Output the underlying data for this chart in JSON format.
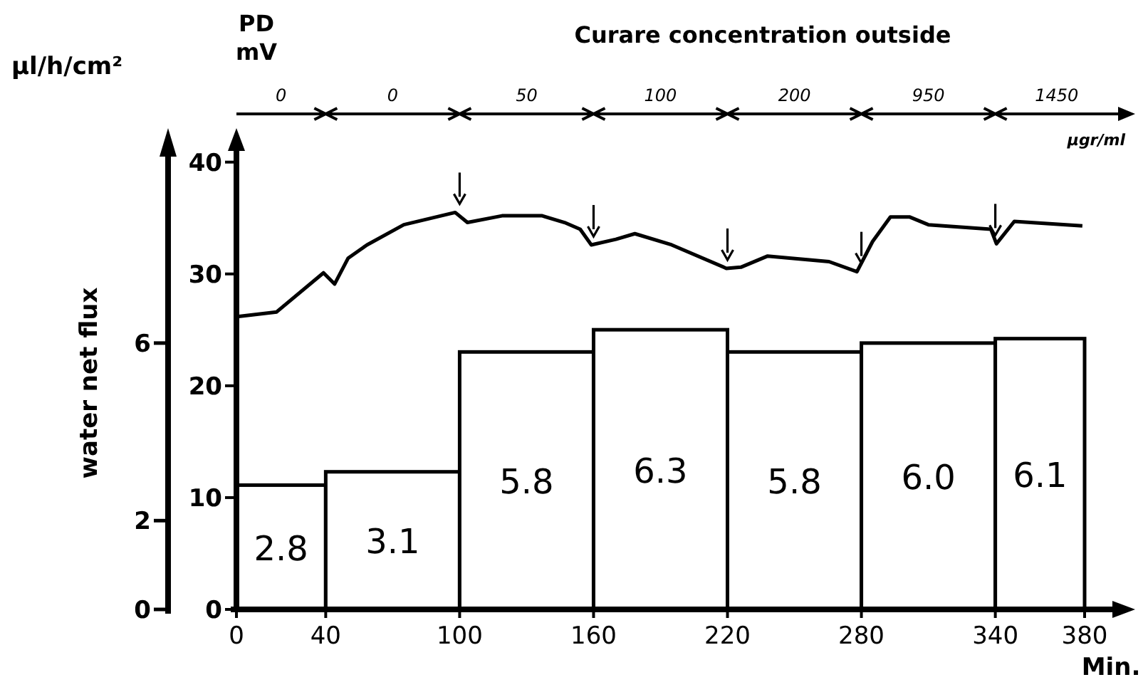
{
  "chart_data": {
    "type": "histogram",
    "title": "Curare concentration outside",
    "ylabel": "water net flux",
    "y2label": "PD mV",
    "xlabel": "Min.",
    "bins": [
      0,
      40,
      100,
      160,
      220,
      280,
      340,
      380
    ],
    "values": [
      2.8,
      3.1,
      5.8,
      6.3,
      5.8,
      6.0,
      6.1
    ],
    "color": "#ffffff",
    "value_labels": [
      "2.8",
      "3.1",
      "5.8",
      "6.3",
      "5.8",
      "6.0",
      "6.1"
    ],
    "series": [
      {
        "type": "line",
        "axis": "y2",
        "color": "#000000",
        "x": [
          0,
          1,
          18,
          39,
          44,
          50,
          58.5,
          75,
          98,
          103.5,
          119,
          137,
          147,
          154,
          159,
          170,
          178.5,
          195,
          219.5,
          226,
          238,
          265.5,
          278,
          285,
          293,
          301.5,
          310,
          338,
          340.5,
          348.5,
          379
        ],
        "values": [
          26.2,
          26.2,
          26.6,
          30.1,
          29.1,
          31.4,
          32.6,
          34.4,
          35.5,
          34.6,
          35.2,
          35.2,
          34.6,
          34.0,
          32.6,
          33.1,
          33.6,
          32.6,
          30.5,
          30.6,
          31.6,
          31.1,
          30.2,
          32.9,
          35.1,
          35.1,
          34.4,
          34.0,
          32.7,
          34.7,
          34.3
        ]
      }
    ],
    "xlim": [
      0,
      395
    ],
    "xticks": [
      0,
      40,
      100,
      160,
      220,
      280,
      340,
      380
    ],
    "ylim": [
      0,
      10.2
    ],
    "yticks": [
      0,
      2,
      6
    ],
    "y2lim": [
      0,
      41
    ],
    "y2ticks": [
      0,
      10,
      20,
      30,
      40
    ],
    "annotations": [
      "µl/h/cm²",
      "µgr/ml",
      "0",
      "0",
      "50",
      "100",
      "200",
      "950",
      "1450"
    ]
  }
}
